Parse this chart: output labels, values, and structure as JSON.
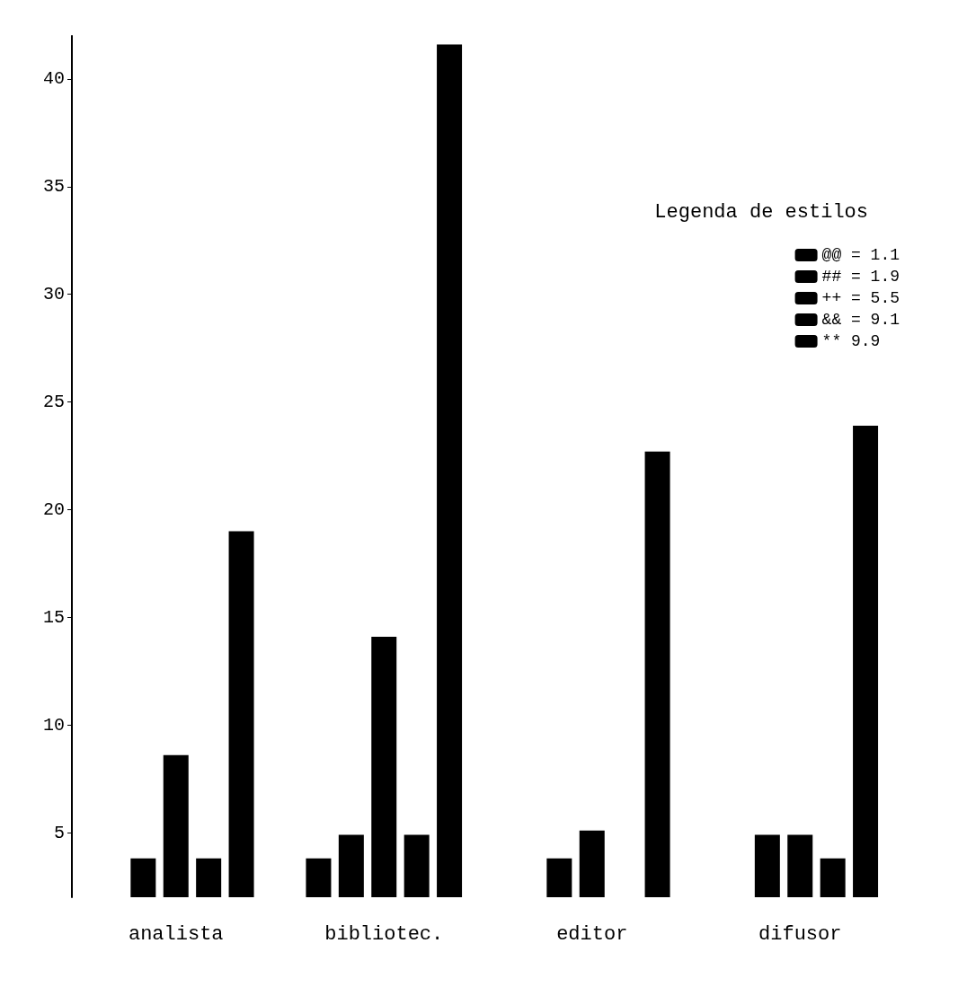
{
  "chart_data": {
    "type": "bar",
    "legend_title": "Legenda de estilos",
    "categories": [
      "analista",
      "bibliotec.",
      "editor",
      "difusor"
    ],
    "series": [
      {
        "name": "@@ = 1.1",
        "color": "#000000",
        "values": [
          null,
          3.8,
          null,
          null
        ]
      },
      {
        "name": "## = 1.9",
        "color": "#000000",
        "values": [
          3.8,
          4.9,
          3.8,
          4.9
        ]
      },
      {
        "name": "++ = 5.5",
        "color": "#000000",
        "values": [
          8.6,
          14.1,
          5.1,
          4.9
        ]
      },
      {
        "name": "&& = 9.1",
        "color": "#000000",
        "values": [
          3.8,
          4.9,
          null,
          3.8
        ]
      },
      {
        "name": "** 9.9",
        "color": "#000000",
        "values": [
          19,
          41.6,
          22.7,
          23.9
        ]
      }
    ],
    "ylim": [
      2,
      42
    ],
    "yticks": [
      5,
      10,
      15,
      20,
      25,
      30,
      35,
      40
    ],
    "grid": false,
    "legend": "top right"
  }
}
